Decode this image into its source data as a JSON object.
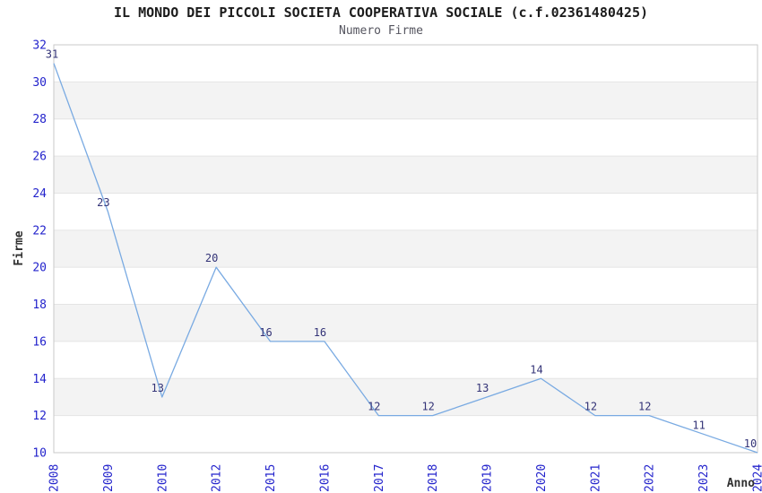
{
  "chart_data": {
    "type": "line",
    "title": "IL MONDO DEI PICCOLI SOCIETA COOPERATIVA SOCIALE (c.f.02361480425)",
    "subtitle": "Numero Firme",
    "xlabel": "Anno",
    "ylabel": "Firme",
    "categories": [
      "2008",
      "2009",
      "2010",
      "2012",
      "2015",
      "2016",
      "2017",
      "2018",
      "2019",
      "2020",
      "2021",
      "2022",
      "2023",
      "2024"
    ],
    "values": [
      31,
      23,
      13,
      20,
      16,
      16,
      12,
      12,
      13,
      14,
      12,
      12,
      11,
      10
    ],
    "ylim": [
      10,
      32
    ],
    "ytick_step": 2,
    "yticks": [
      10,
      12,
      14,
      16,
      18,
      20,
      22,
      24,
      26,
      28,
      30,
      32
    ],
    "grid": "alternating-horizontal-bands",
    "legend": "none",
    "point_markers": false,
    "data_labels_visible": true,
    "colors": {
      "line": "#79aae2",
      "data_label": "#333377",
      "tick_label": "#2323cc",
      "band": "#f3f3f3",
      "gridline": "#e4e4e4",
      "plot_border": "#c9c9c9",
      "title": "#1c1c1c",
      "subtitle": "#55555f",
      "axis_title": "#303030",
      "background": "#ffffff"
    }
  }
}
